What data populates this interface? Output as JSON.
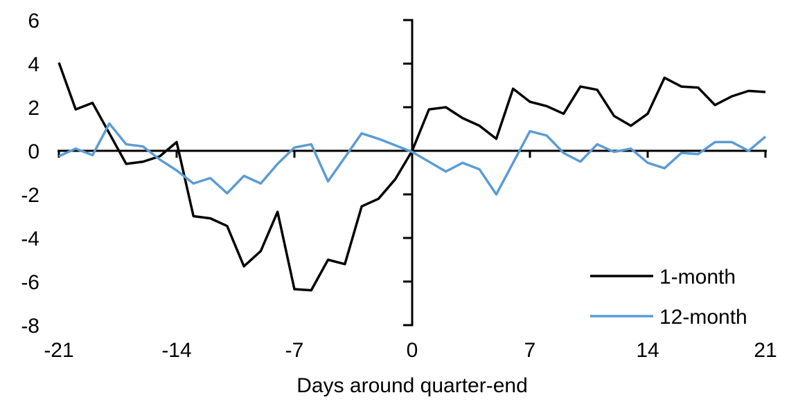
{
  "colors": {
    "series_1month": "#000000",
    "series_12month": "#5b9bd5",
    "axis": "#000000",
    "background": "#ffffff"
  },
  "chart_data": {
    "type": "line",
    "title": "",
    "xlabel": "Days around quarter-end",
    "ylabel": "",
    "xlim": [
      -21,
      21
    ],
    "ylim": [
      -8,
      6
    ],
    "x_ticks": [
      -21,
      -14,
      -7,
      0,
      7,
      14,
      21
    ],
    "y_ticks": [
      6,
      4,
      2,
      0,
      -2,
      -4,
      -6,
      -8
    ],
    "grid": false,
    "legend_position": "lower-right",
    "axis_style": "cross-at-origin",
    "x": [
      -21,
      -20,
      -19,
      -18,
      -17,
      -16,
      -15,
      -14,
      -13,
      -12,
      -11,
      -10,
      -9,
      -8,
      -7,
      -6,
      -5,
      -4,
      -3,
      -2,
      -1,
      0,
      1,
      2,
      3,
      4,
      5,
      6,
      7,
      8,
      9,
      10,
      11,
      12,
      13,
      14,
      15,
      16,
      17,
      18,
      19,
      20,
      21
    ],
    "series": [
      {
        "name": "1-month",
        "color": "#000000",
        "values": [
          4.05,
          1.9,
          2.2,
          0.8,
          -0.6,
          -0.5,
          -0.25,
          0.4,
          -3.0,
          -3.1,
          -3.45,
          -5.3,
          -4.6,
          -2.8,
          -6.35,
          -6.4,
          -5.0,
          -5.2,
          -2.55,
          -2.2,
          -1.3,
          0.0,
          1.9,
          2.0,
          1.5,
          1.15,
          0.55,
          2.85,
          2.25,
          2.05,
          1.7,
          2.95,
          2.8,
          1.6,
          1.15,
          1.7,
          3.35,
          2.95,
          2.9,
          2.1,
          2.5,
          2.75,
          2.7
        ]
      },
      {
        "name": "12-month",
        "color": "#5b9bd5",
        "values": [
          -0.25,
          0.1,
          -0.2,
          1.25,
          0.3,
          0.2,
          -0.4,
          -0.9,
          -1.5,
          -1.25,
          -1.95,
          -1.15,
          -1.5,
          -0.6,
          0.15,
          0.3,
          -1.4,
          -0.3,
          0.8,
          0.55,
          0.25,
          -0.05,
          -0.5,
          -0.95,
          -0.55,
          -0.85,
          -2.0,
          -0.55,
          0.9,
          0.7,
          -0.1,
          -0.5,
          0.3,
          -0.05,
          0.1,
          -0.55,
          -0.8,
          -0.1,
          -0.15,
          0.4,
          0.4,
          0.0,
          0.65
        ]
      }
    ]
  }
}
